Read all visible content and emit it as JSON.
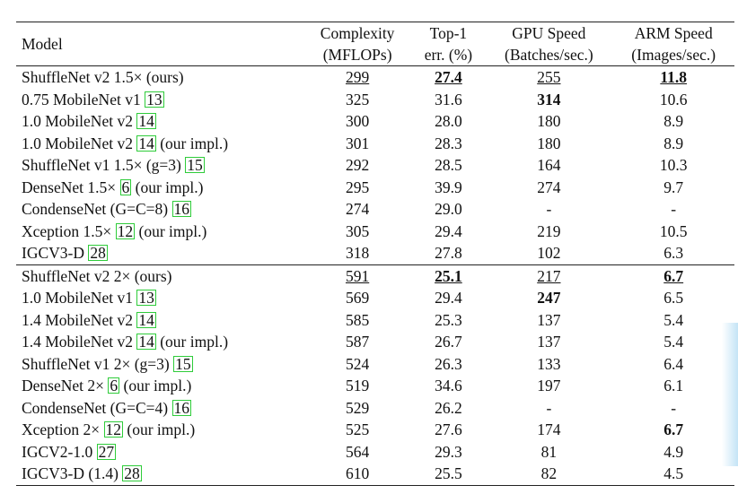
{
  "header": {
    "model": "Model",
    "complexity": [
      "Complexity",
      "(MFLOPs)"
    ],
    "top1": [
      "Top-1",
      "err. (%)"
    ],
    "gpu": [
      "GPU Speed",
      "(Batches/sec.)"
    ],
    "arm": [
      "ARM Speed",
      "(Images/sec.)"
    ]
  },
  "groups": [
    [
      {
        "name": "ShuffleNet v2 1.5× (ours)",
        "cite": "",
        "suffix": "",
        "complexity": "299",
        "top1": "27.4",
        "gpu": "255",
        "arm": "11.8",
        "style": {
          "complexity": "u",
          "top1": "bu",
          "gpu": "u",
          "arm": "bu"
        }
      },
      {
        "name": "0.75 MobileNet v1 ",
        "cite": "13",
        "suffix": "",
        "complexity": "325",
        "top1": "31.6",
        "gpu": "314",
        "arm": "10.6",
        "style": {
          "gpu": "b"
        }
      },
      {
        "name": "1.0 MobileNet v2 ",
        "cite": "14",
        "suffix": "",
        "complexity": "300",
        "top1": "28.0",
        "gpu": "180",
        "arm": "8.9",
        "style": {}
      },
      {
        "name": "1.0 MobileNet v2 ",
        "cite": "14",
        "suffix": " (our impl.)",
        "complexity": "301",
        "top1": "28.3",
        "gpu": "180",
        "arm": "8.9",
        "style": {}
      },
      {
        "name": "ShuffleNet v1 1.5× (g=3) ",
        "cite": "15",
        "suffix": "",
        "complexity": "292",
        "top1": "28.5",
        "gpu": "164",
        "arm": "10.3",
        "style": {}
      },
      {
        "name": "DenseNet 1.5× ",
        "cite": "6",
        "suffix": " (our impl.)",
        "complexity": "295",
        "top1": "39.9",
        "gpu": "274",
        "arm": "9.7",
        "style": {}
      },
      {
        "name": "CondenseNet (G=C=8) ",
        "cite": "16",
        "suffix": "",
        "complexity": "274",
        "top1": "29.0",
        "gpu": "-",
        "arm": "-",
        "style": {}
      },
      {
        "name": "Xception 1.5× ",
        "cite": "12",
        "suffix": " (our impl.)",
        "complexity": "305",
        "top1": "29.4",
        "gpu": "219",
        "arm": "10.5",
        "style": {}
      },
      {
        "name": "IGCV3-D ",
        "cite": "28",
        "suffix": "",
        "complexity": "318",
        "top1": "27.8",
        "gpu": "102",
        "arm": "6.3",
        "style": {}
      }
    ],
    [
      {
        "name": "ShuffleNet v2 2× (ours)",
        "cite": "",
        "suffix": "",
        "complexity": "591",
        "top1": "25.1",
        "gpu": "217",
        "arm": "6.7",
        "style": {
          "complexity": "u",
          "top1": "bu",
          "gpu": "u",
          "arm": "bu"
        }
      },
      {
        "name": "1.0 MobileNet v1 ",
        "cite": "13",
        "suffix": "",
        "complexity": "569",
        "top1": "29.4",
        "gpu": "247",
        "arm": "6.5",
        "style": {
          "gpu": "b"
        }
      },
      {
        "name": "1.4 MobileNet v2 ",
        "cite": "14",
        "suffix": "",
        "complexity": "585",
        "top1": "25.3",
        "gpu": "137",
        "arm": "5.4",
        "style": {}
      },
      {
        "name": "1.4 MobileNet v2 ",
        "cite": "14",
        "suffix": " (our impl.)",
        "complexity": "587",
        "top1": "26.7",
        "gpu": "137",
        "arm": "5.4",
        "style": {}
      },
      {
        "name": "ShuffleNet v1 2× (g=3) ",
        "cite": "15",
        "suffix": "",
        "complexity": "524",
        "top1": "26.3",
        "gpu": "133",
        "arm": "6.4",
        "style": {}
      },
      {
        "name": "DenseNet 2× ",
        "cite": "6",
        "suffix": " (our impl.)",
        "complexity": "519",
        "top1": "34.6",
        "gpu": "197",
        "arm": "6.1",
        "style": {}
      },
      {
        "name": "CondenseNet (G=C=4) ",
        "cite": "16",
        "suffix": "",
        "complexity": "529",
        "top1": "26.2",
        "gpu": "-",
        "arm": "-",
        "style": {}
      },
      {
        "name": "Xception 2× ",
        "cite": "12",
        "suffix": " (our impl.)",
        "complexity": "525",
        "top1": "27.6",
        "gpu": "174",
        "arm": "6.7",
        "style": {
          "arm": "b"
        }
      },
      {
        "name": "IGCV2-1.0 ",
        "cite": "27",
        "suffix": "",
        "complexity": "564",
        "top1": "29.3",
        "gpu": "81",
        "arm": "4.9",
        "style": {}
      },
      {
        "name": "IGCV3-D (1.4) ",
        "cite": "28",
        "suffix": "",
        "complexity": "610",
        "top1": "25.5",
        "gpu": "82",
        "arm": "4.5",
        "style": {}
      }
    ]
  ]
}
